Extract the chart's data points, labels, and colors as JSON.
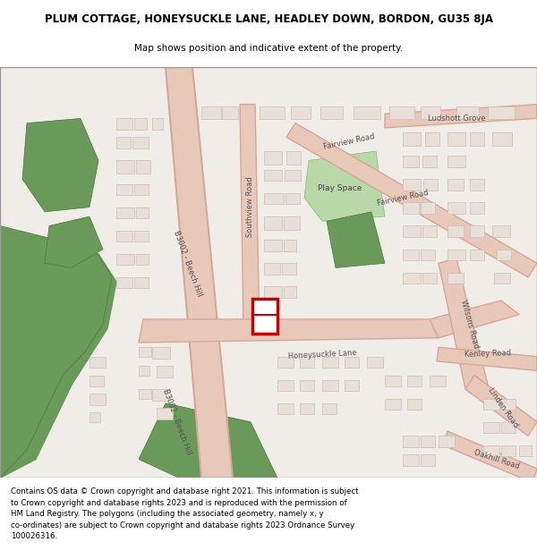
{
  "title_line1": "PLUM COTTAGE, HONEYSUCKLE LANE, HEADLEY DOWN, BORDON, GU35 8JA",
  "title_line2": "Map shows position and indicative extent of the property.",
  "footer_text": "Contains OS data © Crown copyright and database right 2021. This information is subject\nto Crown copyright and database rights 2023 and is reproduced with the permission of\nHM Land Registry. The polygons (including the associated geometry, namely x, y\nco-ordinates) are subject to Crown copyright and database rights 2023 Ordnance Survey\n100026316.",
  "bg_color": "#f5f5f0",
  "map_bg": "#f0ede8",
  "road_color": "#e8c8b8",
  "road_outline": "#d4a898",
  "building_color": "#e8e0d8",
  "building_outline": "#c8c0b8",
  "green_color": "#6a9a5a",
  "green_light": "#b8d8a8",
  "plot_color": "#cc0000",
  "road_label_color": "#555555",
  "title_color": "#000000",
  "footer_color": "#000000"
}
